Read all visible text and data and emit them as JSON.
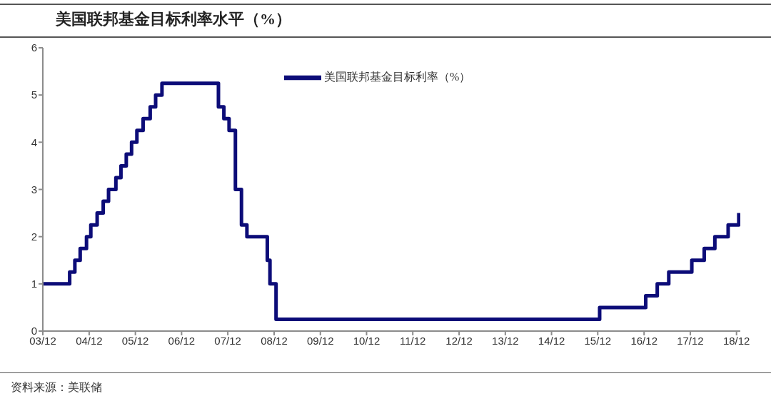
{
  "chart_data": {
    "type": "step",
    "title": "美国联邦基金目标利率水平（%）",
    "annotations": [
      "资料来源：美联储"
    ],
    "x": [
      "2003-12-01",
      "2004-06-30",
      "2004-08-10",
      "2004-09-21",
      "2004-11-10",
      "2004-12-14",
      "2005-02-02",
      "2005-03-22",
      "2005-05-03",
      "2005-06-30",
      "2005-08-09",
      "2005-09-20",
      "2005-11-01",
      "2005-12-13",
      "2006-01-31",
      "2006-03-28",
      "2006-05-10",
      "2006-06-29",
      "2007-09-18",
      "2007-10-31",
      "2007-12-11",
      "2008-01-30",
      "2008-03-18",
      "2008-04-30",
      "2008-10-08",
      "2008-10-29",
      "2008-12-16",
      "2015-12-16",
      "2016-12-14",
      "2017-03-15",
      "2017-06-14",
      "2017-12-13",
      "2018-03-21",
      "2018-06-13",
      "2018-09-26",
      "2018-12-19"
    ],
    "series": [
      {
        "name": "美国联邦基金目标利率（%）",
        "color": "#0c0c78",
        "values": [
          1,
          1.25,
          1.5,
          1.75,
          2,
          2.25,
          2.5,
          2.75,
          3,
          3.25,
          3.5,
          3.75,
          4,
          4.25,
          4.5,
          4.75,
          5,
          5.25,
          4.75,
          4.5,
          4.25,
          3,
          2.25,
          2,
          1.5,
          1,
          0.25,
          0.5,
          0.75,
          1,
          1.25,
          1.5,
          1.75,
          2,
          2.25,
          2.5
        ]
      }
    ],
    "xlim": [
      "2003-12-01",
      "2018-12-31"
    ],
    "xticks": [
      {
        "value": "2003-12",
        "label": "03/12"
      },
      {
        "value": "2004-12",
        "label": "04/12"
      },
      {
        "value": "2005-12",
        "label": "05/12"
      },
      {
        "value": "2006-12",
        "label": "06/12"
      },
      {
        "value": "2007-12",
        "label": "07/12"
      },
      {
        "value": "2008-12",
        "label": "08/12"
      },
      {
        "value": "2009-12",
        "label": "09/12"
      },
      {
        "value": "2010-12",
        "label": "10/12"
      },
      {
        "value": "2011-12",
        "label": "11/12"
      },
      {
        "value": "2012-12",
        "label": "12/12"
      },
      {
        "value": "2013-12",
        "label": "13/12"
      },
      {
        "value": "2014-12",
        "label": "14/12"
      },
      {
        "value": "2015-12",
        "label": "15/12"
      },
      {
        "value": "2016-12",
        "label": "16/12"
      },
      {
        "value": "2017-12",
        "label": "17/12"
      },
      {
        "value": "2018-12",
        "label": "18/12"
      }
    ],
    "ylim": [
      0,
      6
    ],
    "yticks": [
      0,
      1,
      2,
      3,
      4,
      5,
      6
    ],
    "legend": "top",
    "line_style": "solid"
  }
}
